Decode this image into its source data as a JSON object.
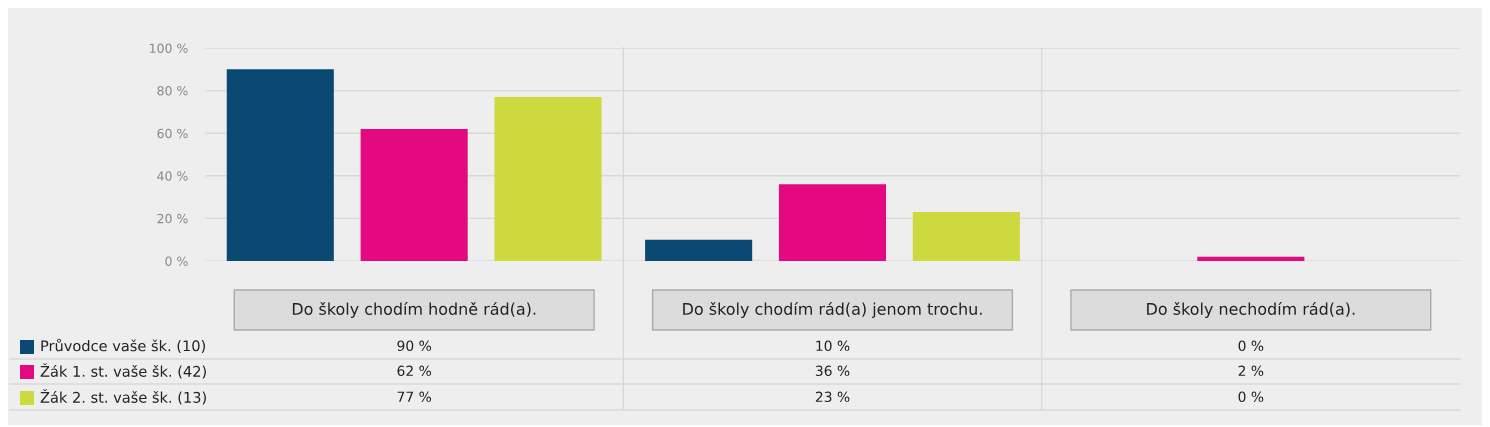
{
  "chart_data": {
    "type": "bar",
    "categories": [
      "Do školy chodím hodně rád(a).",
      "Do školy chodím rád(a) jenom trochu.",
      "Do školy nechodím rád(a)."
    ],
    "series": [
      {
        "name": "Průvodce vaše šk. (10)",
        "color": "#0a4a72",
        "values": [
          90,
          10,
          0
        ],
        "value_labels": [
          "90 %",
          "10 %",
          "0 %"
        ]
      },
      {
        "name": "Žák 1. st. vaše šk. (42)",
        "color": "#e4097f",
        "values": [
          62,
          36,
          2
        ],
        "value_labels": [
          "62 %",
          "36 %",
          "2 %"
        ]
      },
      {
        "name": "Žák 2. st. vaše šk. (13)",
        "color": "#cdd93c",
        "values": [
          77,
          23,
          0
        ],
        "value_labels": [
          "77 %",
          "23 %",
          "0 %"
        ]
      }
    ],
    "ylim": [
      0,
      100
    ],
    "yticks": [
      {
        "value": 0,
        "label": "0 %"
      },
      {
        "value": 20,
        "label": "20 %"
      },
      {
        "value": 40,
        "label": "40 %"
      },
      {
        "value": 60,
        "label": "60 %"
      },
      {
        "value": 80,
        "label": "80 %"
      },
      {
        "value": 100,
        "label": "100 %"
      }
    ],
    "grid": "y",
    "legend": "bottom left"
  }
}
